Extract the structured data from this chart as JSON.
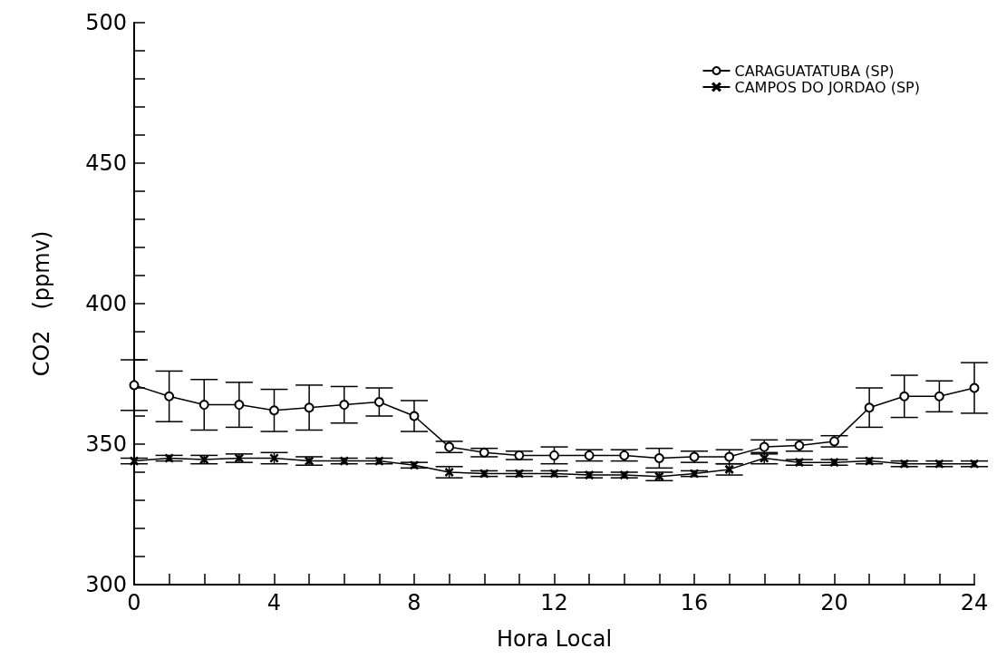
{
  "chart_data": {
    "type": "line",
    "xlabel": "Hora Local",
    "ylabel": "CO2   (ppmv)",
    "x": [
      0,
      1,
      2,
      3,
      4,
      5,
      6,
      7,
      8,
      9,
      10,
      11,
      12,
      13,
      14,
      15,
      16,
      17,
      18,
      19,
      20,
      21,
      22,
      23,
      24
    ],
    "xlim": [
      0,
      24
    ],
    "xticks": [
      0,
      {
        "value": 1,
        "label": null
      },
      {
        "value": 2,
        "label": null
      },
      {
        "value": 3,
        "label": null
      },
      4,
      {
        "value": 5,
        "label": null
      },
      {
        "value": 6,
        "label": null
      },
      {
        "value": 7,
        "label": null
      },
      8,
      {
        "value": 9,
        "label": null
      },
      {
        "value": 10,
        "label": null
      },
      {
        "value": 11,
        "label": null
      },
      12,
      {
        "value": 13,
        "label": null
      },
      {
        "value": 14,
        "label": null
      },
      {
        "value": 15,
        "label": null
      },
      16,
      {
        "value": 17,
        "label": null
      },
      {
        "value": 18,
        "label": null
      },
      {
        "value": 19,
        "label": null
      },
      20,
      {
        "value": 21,
        "label": null
      },
      {
        "value": 22,
        "label": null
      },
      {
        "value": 23,
        "label": null
      },
      24
    ],
    "ylim": [
      300,
      500
    ],
    "yticks": [
      300,
      {
        "value": 310,
        "label": null
      },
      {
        "value": 320,
        "label": null
      },
      {
        "value": 330,
        "label": null
      },
      {
        "value": 340,
        "label": null
      },
      350,
      {
        "value": 360,
        "label": null
      },
      {
        "value": 370,
        "label": null
      },
      {
        "value": 380,
        "label": null
      },
      {
        "value": 390,
        "label": null
      },
      400,
      {
        "value": 410,
        "label": null
      },
      {
        "value": 420,
        "label": null
      },
      {
        "value": 430,
        "label": null
      },
      {
        "value": 440,
        "label": null
      },
      450,
      {
        "value": 460,
        "label": null
      },
      {
        "value": 470,
        "label": null
      },
      {
        "value": 480,
        "label": null
      },
      {
        "value": 490,
        "label": null
      },
      500
    ],
    "grid": false,
    "legend": "top right",
    "line_style": "solid",
    "series": [
      {
        "name": "CARAGUATATUBA (SP)",
        "color": "#000000",
        "marker": "circle",
        "values": [
          371,
          367,
          364,
          364,
          362,
          363,
          364,
          365,
          360,
          349,
          347,
          346,
          346,
          346,
          346,
          345,
          345.5,
          345.5,
          349,
          349.5,
          351,
          363,
          367,
          367,
          370
        ],
        "errors": [
          9,
          9,
          9,
          8,
          7.5,
          8,
          6.5,
          5,
          5.5,
          2,
          1.5,
          1.5,
          3,
          2,
          2,
          3.5,
          2,
          2.5,
          2.5,
          2,
          2,
          7,
          7.5,
          5.5,
          9
        ]
      },
      {
        "name": "CAMPOS DO JORDAO (SP)",
        "color": "#000000",
        "marker": "cross",
        "values": [
          344,
          345,
          344.5,
          345,
          345,
          344,
          344,
          344,
          342.5,
          340,
          339.5,
          339.5,
          339.5,
          339,
          339,
          338.5,
          339.5,
          341,
          345,
          343.5,
          343.5,
          344,
          343,
          343,
          343
        ],
        "errors": [
          1,
          1,
          1.5,
          1.5,
          2,
          1.5,
          1,
          1,
          1,
          2,
          1,
          1,
          1,
          1,
          1,
          1.5,
          1,
          2,
          2,
          1,
          1,
          1,
          1,
          1,
          1
        ]
      }
    ]
  }
}
